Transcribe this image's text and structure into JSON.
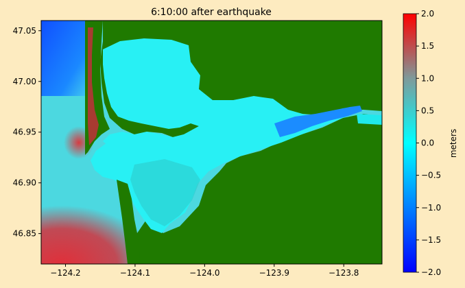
{
  "figure": {
    "title": "6:10:00 after earthquake",
    "background": "#fdebc0"
  },
  "map": {
    "x_ticks": [
      {
        "value": -124.2,
        "label": "−124.2"
      },
      {
        "value": -124.1,
        "label": "−124.1"
      },
      {
        "value": -124.0,
        "label": "−124.0"
      },
      {
        "value": -123.9,
        "label": "−123.9"
      },
      {
        "value": -123.8,
        "label": "−123.8"
      }
    ],
    "y_ticks": [
      {
        "value": 47.05,
        "label": "47.05"
      },
      {
        "value": 47.0,
        "label": "47.00"
      },
      {
        "value": 46.95,
        "label": "46.95"
      },
      {
        "value": 46.9,
        "label": "46.90"
      },
      {
        "value": 46.85,
        "label": "46.85"
      }
    ],
    "xlim": [
      -124.235,
      -123.745
    ],
    "ylim": [
      46.82,
      47.06
    ],
    "land_color": "#1f7a00",
    "water_color": "#00e5ff"
  },
  "colorbar": {
    "label": "meters",
    "vmin": -2.0,
    "vmax": 2.0,
    "colors": [
      "#0000ff",
      "#00ffff",
      "#ff0000"
    ],
    "ticks": [
      {
        "value": 2.0,
        "label": "2.0"
      },
      {
        "value": 1.5,
        "label": "1.5"
      },
      {
        "value": 1.0,
        "label": "1.0"
      },
      {
        "value": 0.5,
        "label": "0.5"
      },
      {
        "value": 0.0,
        "label": "0.0"
      },
      {
        "value": -0.5,
        "label": "−0.5"
      },
      {
        "value": -1.0,
        "label": "−1.0"
      },
      {
        "value": -1.5,
        "label": "−1.5"
      },
      {
        "value": -2.0,
        "label": "−2.0"
      }
    ]
  }
}
